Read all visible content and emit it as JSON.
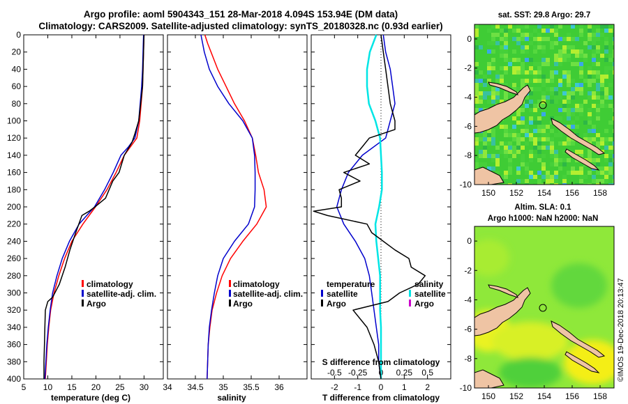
{
  "title": {
    "line1": "Argo profile: aoml 5904343_151 28-Mar-2018 4.094S 153.94E (DM data)",
    "line2": "Climatology: CARS2009. Satellite-adjusted climatology: synTS_20180328.nc (0.93d earlier)"
  },
  "colors": {
    "climatology": "#ff0000",
    "satellite": "#0000cc",
    "argo": "#000000",
    "sal_sat": "#00e5e5",
    "sal_argo": "#cc00cc",
    "land": "#efc4a4"
  },
  "depth_ticks": [
    "0",
    "20",
    "40",
    "60",
    "80",
    "100",
    "120",
    "140",
    "160",
    "180",
    "200",
    "220",
    "240",
    "260",
    "280",
    "300",
    "320",
    "340",
    "360",
    "380",
    "400"
  ],
  "chart_data": [
    {
      "type": "line",
      "id": "temperature",
      "xlabel": "temperature (deg C)",
      "xlim": [
        5,
        34
      ],
      "ylim": [
        0,
        400
      ],
      "xticks": [
        "5",
        "10",
        "15",
        "20",
        "25",
        "30"
      ],
      "xtick_values": [
        5,
        10,
        15,
        20,
        25,
        30
      ],
      "legend": [
        "climatology",
        "satellite-adj. clim.",
        "Argo"
      ],
      "series": [
        {
          "name": "climatology",
          "color": "#ff0000",
          "depth": [
            0,
            20,
            40,
            60,
            80,
            100,
            120,
            130,
            140,
            160,
            180,
            200,
            220,
            240,
            260,
            280,
            300,
            320,
            340,
            360,
            380,
            400
          ],
          "values": [
            30.0,
            29.9,
            29.8,
            29.7,
            29.4,
            29.1,
            28.5,
            27.2,
            25.9,
            24.2,
            22.3,
            19.9,
            17.3,
            15.0,
            13.5,
            12.3,
            11.3,
            10.6,
            10.2,
            9.9,
            9.7,
            9.5
          ]
        },
        {
          "name": "satellite-adj. clim.",
          "color": "#0000cc",
          "depth": [
            0,
            20,
            40,
            60,
            80,
            100,
            120,
            130,
            140,
            160,
            180,
            200,
            220,
            240,
            260,
            280,
            300,
            320,
            340,
            360,
            380,
            400
          ],
          "values": [
            29.9,
            29.8,
            29.7,
            29.5,
            29.2,
            28.9,
            28.1,
            26.8,
            25.2,
            23.6,
            21.8,
            19.7,
            16.5,
            14.5,
            13.0,
            11.9,
            11.0,
            10.5,
            10.1,
            9.8,
            9.6,
            9.4
          ]
        },
        {
          "name": "Argo",
          "color": "#000000",
          "depth": [
            0,
            20,
            40,
            60,
            80,
            100,
            115,
            125,
            140,
            160,
            170,
            190,
            200,
            205,
            210,
            230,
            250,
            270,
            290,
            305,
            310,
            320,
            340,
            360,
            380,
            400
          ],
          "values": [
            30.0,
            29.9,
            29.8,
            29.7,
            29.3,
            28.9,
            28.1,
            27.5,
            25.9,
            24.8,
            23.5,
            22.0,
            19.8,
            18.6,
            17.1,
            15.8,
            14.6,
            13.6,
            12.4,
            11.0,
            10.0,
            9.5,
            9.4,
            9.3,
            9.2,
            9.2
          ]
        }
      ]
    },
    {
      "type": "line",
      "id": "salinity",
      "xlabel": "salinity",
      "xlim": [
        34,
        36.5
      ],
      "ylim": [
        0,
        400
      ],
      "xticks": [
        "34",
        "34.5",
        "35",
        "35.5",
        "36"
      ],
      "xtick_values": [
        34,
        34.5,
        35,
        35.5,
        36
      ],
      "legend": [
        "climatology",
        "satellite-adj. clim.",
        "Argo"
      ],
      "series": [
        {
          "name": "climatology",
          "color": "#ff0000",
          "depth": [
            0,
            10,
            20,
            40,
            60,
            80,
            100,
            120,
            140,
            160,
            180,
            200,
            220,
            240,
            260,
            280,
            300,
            320,
            340,
            360,
            380,
            400
          ],
          "values": [
            34.67,
            34.72,
            34.78,
            34.9,
            35.05,
            35.2,
            35.38,
            35.52,
            35.58,
            35.63,
            35.73,
            35.77,
            35.6,
            35.35,
            35.13,
            34.98,
            34.88,
            34.8,
            34.76,
            34.73,
            34.72,
            34.71
          ]
        },
        {
          "name": "satellite-adj. clim.",
          "color": "#0000cc",
          "depth": [
            0,
            10,
            20,
            40,
            60,
            80,
            100,
            120,
            140,
            160,
            180,
            200,
            220,
            240,
            260,
            280,
            300,
            320,
            340,
            360,
            380,
            400
          ],
          "values": [
            34.6,
            34.63,
            34.66,
            34.75,
            34.9,
            35.1,
            35.35,
            35.52,
            35.56,
            35.57,
            35.57,
            35.56,
            35.45,
            35.2,
            35.0,
            34.9,
            34.84,
            34.79,
            34.75,
            34.73,
            34.72,
            34.71
          ]
        }
      ]
    },
    {
      "type": "line",
      "id": "difference",
      "xlabel": "T difference from climatology",
      "xlim": [
        -3,
        3
      ],
      "ylim": [
        0,
        400
      ],
      "xticks": [
        "-2",
        "-1",
        "0",
        "1",
        "2"
      ],
      "xtick_values": [
        -2,
        -1,
        0,
        1,
        2
      ],
      "top_axis_label": "S difference from climatology",
      "top_ticks": [
        "-0.5",
        "-0.25",
        "0",
        "0.25",
        "0.5"
      ],
      "top_tick_values": [
        -0.5,
        -0.25,
        0,
        0.25,
        0.5
      ],
      "legend_temperature": {
        "title": "temperature",
        "items": [
          "satellite",
          "Argo"
        ]
      },
      "legend_salinity": {
        "title": "salinity",
        "items": [
          "satellite",
          "Argo"
        ]
      },
      "series": [
        {
          "name": "T satellite",
          "color": "#0000cc",
          "depth": [
            0,
            20,
            40,
            60,
            80,
            100,
            120,
            140,
            160,
            180,
            200,
            220,
            240,
            260,
            280,
            300,
            320,
            340,
            360,
            380,
            400
          ],
          "values": [
            0.1,
            0.2,
            0.4,
            0.5,
            0.6,
            0.4,
            0.2,
            -0.8,
            -1.4,
            -1.7,
            -1.9,
            -1.6,
            -1.1,
            -0.7,
            -0.5,
            -0.4,
            -0.3,
            -0.2,
            -0.1,
            -0.1,
            0.0
          ]
        },
        {
          "name": "S satellite",
          "color": "#00e5e5",
          "depth": [
            0,
            20,
            40,
            60,
            80,
            100,
            120,
            140,
            160,
            180,
            200,
            220,
            240,
            260,
            280,
            300,
            320,
            340,
            360,
            380,
            400
          ],
          "values": [
            -0.05,
            -0.12,
            -0.15,
            -0.15,
            -0.13,
            -0.06,
            -0.01,
            0.0,
            0.01,
            0.01,
            -0.02,
            -0.06,
            -0.05,
            -0.03,
            -0.01,
            -0.01,
            -0.01,
            0.0,
            0.0,
            0.0,
            0.0
          ]
        },
        {
          "name": "T Argo",
          "color": "#000000",
          "depth": [
            0,
            20,
            40,
            60,
            80,
            100,
            110,
            120,
            130,
            140,
            150,
            160,
            170,
            180,
            190,
            200,
            205,
            210,
            220,
            230,
            240,
            250,
            260,
            270,
            280,
            290,
            300,
            310,
            320,
            340,
            360,
            380,
            400
          ],
          "values": [
            0.0,
            0.1,
            0.2,
            0.3,
            0.4,
            0.6,
            0.6,
            -0.5,
            -0.8,
            -1.1,
            -0.5,
            -1.6,
            -0.9,
            -1.8,
            -1.7,
            -1.7,
            -2.9,
            -2.3,
            -0.6,
            -0.4,
            0.1,
            0.6,
            1.2,
            1.3,
            1.9,
            1.6,
            0.8,
            0.3,
            -1.2,
            -0.6,
            -0.3,
            -0.1,
            0.0
          ]
        }
      ]
    },
    {
      "type": "heatmap",
      "id": "sst-map",
      "title": "sat. SST: 29.8 Argo: 29.7",
      "xlim": [
        149,
        159
      ],
      "ylim": [
        -10,
        1
      ],
      "xticks": [
        "150",
        "152",
        "154",
        "156",
        "158"
      ],
      "xtick_values": [
        150,
        152,
        154,
        156,
        158
      ],
      "yticks": [
        "0",
        "-2",
        "-4",
        "-6",
        "-8",
        "-10"
      ],
      "ytick_values": [
        0,
        -2,
        -4,
        -6,
        -8,
        -10
      ],
      "argo_position": [
        153.94,
        -4.094
      ]
    },
    {
      "type": "heatmap",
      "id": "sla-map",
      "title": "Altim. SLA: 0.1",
      "subtitle": "Argo h1000: NaN h2000: NaN",
      "xlim": [
        149,
        159
      ],
      "ylim": [
        -10,
        1
      ],
      "xticks": [
        "150",
        "152",
        "154",
        "156",
        "158"
      ],
      "xtick_values": [
        150,
        152,
        154,
        156,
        158
      ],
      "yticks": [
        "0",
        "-2",
        "-4",
        "-6",
        "-8",
        "-10"
      ],
      "ytick_values": [
        0,
        -2,
        -4,
        -6,
        -8,
        -10
      ],
      "argo_position": [
        153.94,
        -4.094
      ]
    }
  ],
  "watermark": "©IMOS 19-Dec-2018 20:13:47"
}
